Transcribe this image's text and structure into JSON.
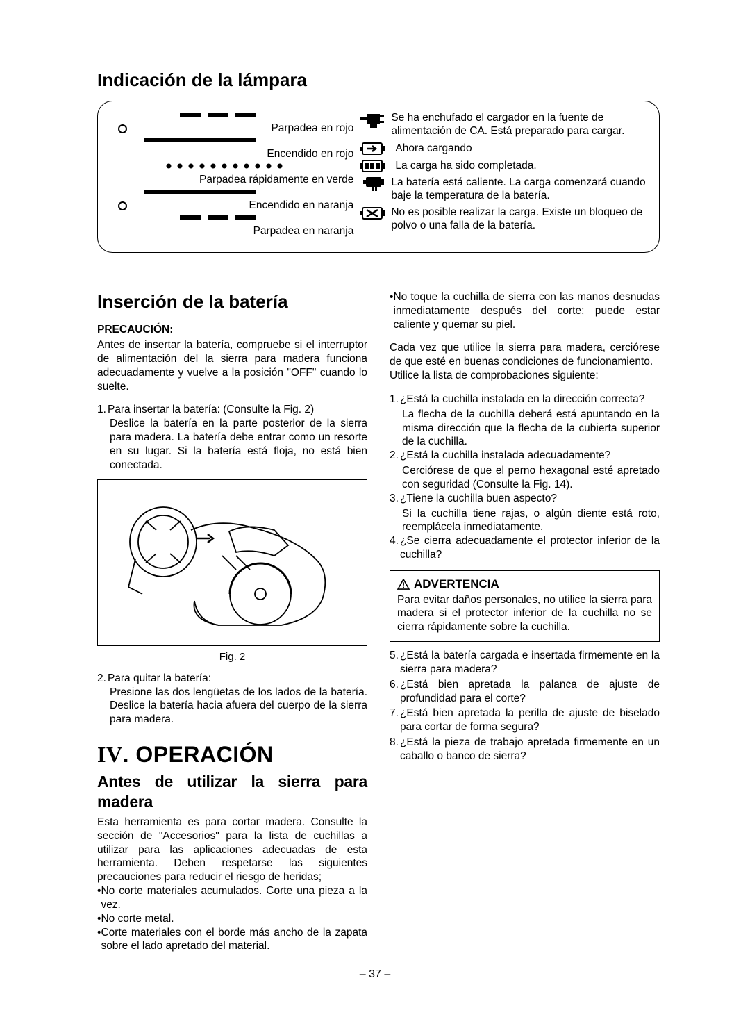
{
  "section_lamp_title": "Indicación de la lámpara",
  "lamp_labels": {
    "l1": "Parpadea en rojo",
    "l2": "Encendido en rojo",
    "l3": "Parpadea rápidamente en verde",
    "l4": "Encendido en naranja",
    "l5": "Parpadea en naranja"
  },
  "lamp_desc": {
    "d1": "Se ha enchufado el cargador en la fuente de alimentación de CA. Está preparado para cargar.",
    "d2": "Ahora cargando",
    "d3": "La carga ha sido completada.",
    "d4": "La batería está caliente. La carga comenzará cuando baje la temperatura de la batería.",
    "d5": "No es posible realizar la carga. Existe un bloqueo de polvo o una falla de la batería."
  },
  "section_battery_title": "Inserción de la batería",
  "precaucion_label": "PRECAUCIÓN:",
  "precaucion_text": "Antes de insertar la batería, compruebe si el interruptor de alimentación del la sierra para madera funciona adecuadamente y vuelve a la posición \"OFF\" cuando lo suelte.",
  "insert_1_num": "1.",
  "insert_1_title": "Para insertar la batería: (Consulte la Fig. 2)",
  "insert_1_body": "Deslice la batería en la parte posterior de la sierra para madera. La batería debe entrar como un resorte en su lugar. Si la batería está floja, no está bien conectada.",
  "fig_caption": "Fig. 2",
  "remove_2_num": "2.",
  "remove_2_title": "Para quitar la batería:",
  "remove_2_body": "Presione las dos lengüetas de los lados de la batería. Deslice la batería hacia afuera del cuerpo de la sierra para madera.",
  "operacion_heading": "IV. OPERACIÓN",
  "antes_title": "Antes de utilizar la sierra para madera",
  "antes_body": "Esta herramienta es para cortar madera. Consulte la sección de \"Accesorios\" para la lista de cuchillas a utilizar para las aplicaciones adecuadas de esta herramienta. Deben respetarse las siguientes precauciones para reducir el riesgo de heridas;",
  "antes_bullets": {
    "b1": "No corte materiales acumulados. Corte una pieza a la vez.",
    "b2": "No corte metal.",
    "b3": "Corte materiales con el borde más ancho de la zapata sobre el lado apretado del material."
  },
  "right_bullet": "No toque la cuchilla de sierra con las manos desnudas inmediatamente después del corte; puede estar caliente y quemar su piel.",
  "right_para1": "Cada vez que utilice la sierra para madera, cerciórese de que esté en buenas condiciones de funcionamiento.",
  "right_para2": "Utilice la lista de comprobaciones siguiente:",
  "questions": {
    "q1n": "1.",
    "q1t": "¿Está la cuchilla instalada en la dirección correcta?",
    "q1b": "La flecha de la cuchilla deberá está apuntando en la misma dirección que la flecha de la cubierta superior de la cuchilla.",
    "q2n": "2.",
    "q2t": "¿Está la cuchilla instalada adecuadamente?",
    "q2b": "Cerciórese de que el perno hexagonal esté apretado con seguridad (Consulte la Fig. 14).",
    "q3n": "3.",
    "q3t": "¿Tiene la cuchilla buen aspecto?",
    "q3b": "Si la cuchilla tiene rajas, o algún diente está roto, reemplácela inmediatamente.",
    "q4n": "4.",
    "q4t": "¿Se cierra adecuadamente el protector inferior de la cuchilla?"
  },
  "warning_label": "ADVERTENCIA",
  "warning_body": "Para evitar daños personales, no utilice la sierra para madera si el protector inferior de la cuchilla no se cierra rápidamente sobre la cuchilla.",
  "questions2": {
    "q5n": "5.",
    "q5t": "¿Está la batería cargada e insertada firmemente en la sierra para madera?",
    "q6n": "6.",
    "q6t": "¿Está bien apretada la palanca de ajuste de profundidad para el corte?",
    "q7n": "7.",
    "q7t": "¿Está bien apretada la perilla de ajuste de biselado para cortar de forma segura?",
    "q8n": "8.",
    "q8t": "¿Está la pieza de trabajo apretada firmemente en un caballo o banco de sierra?"
  },
  "page_number": "– 37 –",
  "colors": {
    "text": "#000000",
    "bg": "#ffffff",
    "border": "#000000"
  }
}
